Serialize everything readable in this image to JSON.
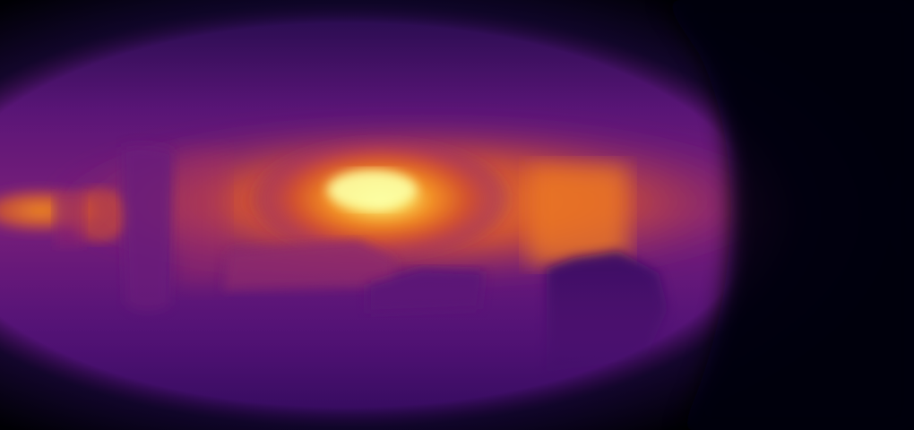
{
  "image": {
    "kind": "depth-map-visualization",
    "colormap": "inferno",
    "palette": {
      "far_black": "#000004",
      "deep_indigo": "#1b0c41",
      "purple": "#4a0c6b",
      "violet": "#6a1b7a",
      "magenta": "#a52c60",
      "red_orange": "#d94c2c",
      "orange": "#f07f1e",
      "yellow": "#f6c63c",
      "pale_yellow": "#fcffa4"
    }
  }
}
